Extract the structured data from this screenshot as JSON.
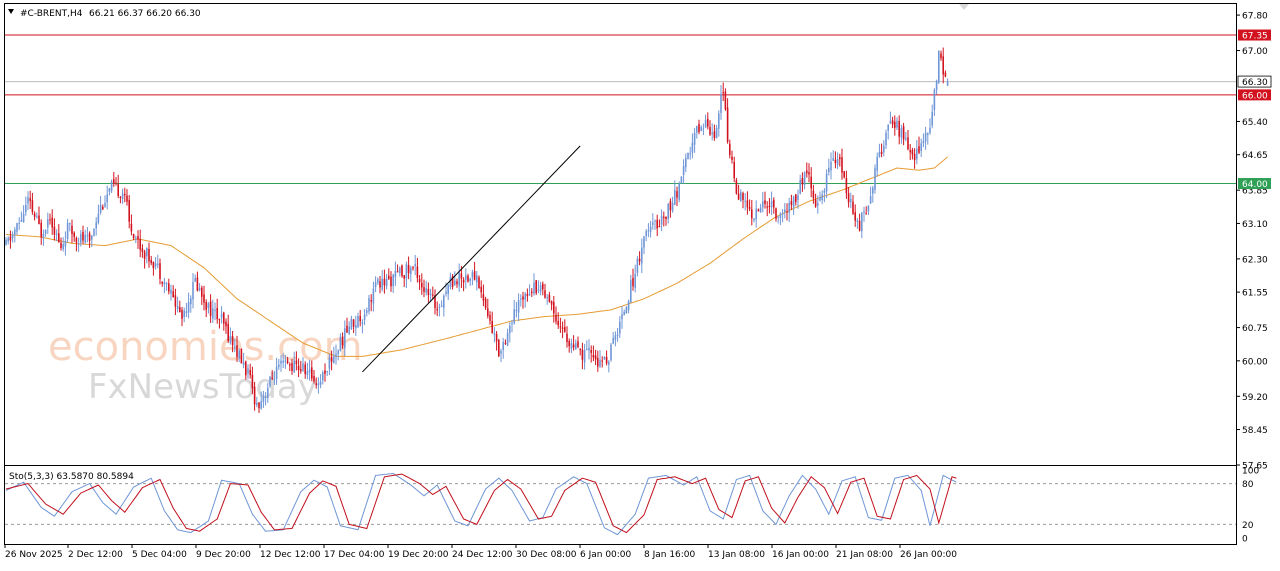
{
  "header": {
    "symbol": "#C-BRENT,H4",
    "ohlc": "66.21 66.37 66.20 66.30"
  },
  "watermark": {
    "line1": "economies.com",
    "line2": "FxNewsToday"
  },
  "colors": {
    "bull": "#6f96d6",
    "bear": "#d2121e",
    "ma": "#e69b32",
    "resistance": "#d2121e",
    "support": "#2fa055",
    "current": "#bdbdbd",
    "trendline": "#000000",
    "stoch_main": "#6f96d6",
    "stoch_signal": "#c0101c"
  },
  "chart_data": [
    {
      "type": "candlestick",
      "title": "#C-BRENT,H4",
      "last_ohlc": {
        "open": 66.21,
        "high": 66.37,
        "low": 66.2,
        "close": 66.3
      },
      "ylim": [
        57.65,
        68.05
      ],
      "y_ticks": [
        "67.80",
        "67.00",
        "65.40",
        "64.65",
        "63.85",
        "63.10",
        "62.30",
        "61.55",
        "60.75",
        "60.00",
        "59.20",
        "58.45",
        "57.65"
      ],
      "x_ticks": [
        "26 Nov 2025",
        "2 Dec 12:00",
        "5 Dec 04:00",
        "9 Dec 20:00",
        "12 Dec 12:00",
        "17 Dec 04:00",
        "19 Dec 20:00",
        "24 Dec 12:00",
        "30 Dec 08:00",
        "6 Jan 00:00",
        "8 Jan 16:00",
        "13 Jan 08:00",
        "16 Jan 00:00",
        "21 Jan 08:00",
        "26 Jan 00:00"
      ],
      "horizontal_levels": [
        {
          "name": "resistance",
          "value": 67.35,
          "label": "67.35"
        },
        {
          "name": "support-1",
          "value": 66.0,
          "label": "66.00"
        },
        {
          "name": "support-2",
          "value": 64.0,
          "label": "64.00"
        }
      ],
      "current_price": {
        "value": 66.3,
        "label": "66.30"
      },
      "trendline": {
        "start": {
          "bar": 162,
          "price": 59.75
        },
        "end": {
          "bar": 261,
          "price": 64.85
        }
      },
      "anchors": [
        [
          0,
          62.6
        ],
        [
          6,
          63.1
        ],
        [
          10,
          63.6
        ],
        [
          16,
          62.9
        ],
        [
          20,
          63.3
        ],
        [
          25,
          62.5
        ],
        [
          28,
          63.0
        ],
        [
          32,
          62.8
        ],
        [
          38,
          62.7
        ],
        [
          42,
          63.4
        ],
        [
          48,
          63.9
        ],
        [
          54,
          63.8
        ],
        [
          56,
          63.1
        ],
        [
          62,
          62.5
        ],
        [
          68,
          62.2
        ],
        [
          74,
          61.6
        ],
        [
          80,
          61.0
        ],
        [
          86,
          61.8
        ],
        [
          92,
          61.2
        ],
        [
          98,
          60.9
        ],
        [
          104,
          60.3
        ],
        [
          110,
          59.7
        ],
        [
          114,
          59.0
        ],
        [
          118,
          59.3
        ],
        [
          122,
          59.7
        ],
        [
          126,
          59.9
        ],
        [
          130,
          59.9
        ],
        [
          136,
          59.8
        ],
        [
          142,
          59.5
        ],
        [
          146,
          59.9
        ],
        [
          150,
          60.2
        ],
        [
          156,
          60.8
        ],
        [
          162,
          61.0
        ],
        [
          168,
          61.7
        ],
        [
          174,
          61.8
        ],
        [
          180,
          62.0
        ],
        [
          186,
          62.1
        ],
        [
          190,
          61.6
        ],
        [
          196,
          61.2
        ],
        [
          202,
          61.8
        ],
        [
          208,
          61.9
        ],
        [
          214,
          61.9
        ],
        [
          218,
          61.2
        ],
        [
          224,
          60.2
        ],
        [
          230,
          60.9
        ],
        [
          236,
          61.6
        ],
        [
          242,
          61.7
        ],
        [
          246,
          61.5
        ],
        [
          250,
          61.0
        ],
        [
          256,
          60.4
        ],
        [
          262,
          60.1
        ],
        [
          266,
          60.2
        ],
        [
          270,
          59.9
        ],
        [
          274,
          60.1
        ],
        [
          280,
          61.0
        ],
        [
          286,
          62.0
        ],
        [
          290,
          62.8
        ],
        [
          294,
          63.0
        ],
        [
          298,
          63.2
        ],
        [
          302,
          63.5
        ],
        [
          306,
          63.9
        ],
        [
          310,
          64.6
        ],
        [
          314,
          65.2
        ],
        [
          318,
          65.4
        ],
        [
          322,
          65.1
        ],
        [
          326,
          66.2
        ],
        [
          328,
          64.9
        ],
        [
          332,
          63.9
        ],
        [
          336,
          63.5
        ],
        [
          340,
          63.3
        ],
        [
          346,
          63.6
        ],
        [
          352,
          63.2
        ],
        [
          358,
          63.6
        ],
        [
          364,
          64.3
        ],
        [
          368,
          63.4
        ],
        [
          372,
          63.9
        ],
        [
          376,
          64.7
        ],
        [
          380,
          64.3
        ],
        [
          384,
          63.5
        ],
        [
          388,
          63.1
        ],
        [
          392,
          63.6
        ],
        [
          396,
          64.5
        ],
        [
          400,
          65.1
        ],
        [
          404,
          65.4
        ],
        [
          408,
          65.0
        ],
        [
          412,
          64.6
        ],
        [
          416,
          64.9
        ],
        [
          420,
          65.2
        ],
        [
          424,
          66.9
        ],
        [
          426,
          66.6
        ],
        [
          428,
          66.3
        ]
      ],
      "moving_average": [
        [
          0,
          62.85
        ],
        [
          15,
          62.8
        ],
        [
          30,
          62.65
        ],
        [
          45,
          62.6
        ],
        [
          60,
          62.75
        ],
        [
          75,
          62.6
        ],
        [
          90,
          62.1
        ],
        [
          105,
          61.4
        ],
        [
          120,
          60.9
        ],
        [
          135,
          60.4
        ],
        [
          150,
          60.1
        ],
        [
          162,
          60.1
        ],
        [
          180,
          60.25
        ],
        [
          200,
          60.5
        ],
        [
          215,
          60.7
        ],
        [
          230,
          60.9
        ],
        [
          245,
          61.0
        ],
        [
          260,
          61.05
        ],
        [
          275,
          61.15
        ],
        [
          290,
          61.4
        ],
        [
          305,
          61.75
        ],
        [
          320,
          62.2
        ],
        [
          335,
          62.75
        ],
        [
          350,
          63.25
        ],
        [
          365,
          63.6
        ],
        [
          380,
          63.85
        ],
        [
          395,
          64.15
        ],
        [
          405,
          64.35
        ],
        [
          415,
          64.3
        ],
        [
          422,
          64.35
        ],
        [
          428,
          64.6
        ]
      ]
    },
    {
      "type": "line",
      "title": "Sto(5,3,3) 63.5870 80.5894",
      "indicator": "Sto(5,3,3)",
      "main_value": 63.587,
      "signal_value": 80.5894,
      "ylim": [
        0,
        100
      ],
      "y_ticks": [
        "100",
        "80",
        "20",
        "0"
      ],
      "levels": [
        80,
        20
      ],
      "series": [
        {
          "name": "main",
          "anchors": [
            [
              0,
              70
            ],
            [
              8,
              82
            ],
            [
              16,
              45
            ],
            [
              22,
              32
            ],
            [
              30,
              68
            ],
            [
              38,
              80
            ],
            [
              44,
              52
            ],
            [
              50,
              35
            ],
            [
              58,
              75
            ],
            [
              66,
              88
            ],
            [
              72,
              40
            ],
            [
              78,
              12
            ],
            [
              84,
              8
            ],
            [
              92,
              25
            ],
            [
              98,
              85
            ],
            [
              106,
              80
            ],
            [
              112,
              35
            ],
            [
              118,
              10
            ],
            [
              126,
              12
            ],
            [
              134,
              68
            ],
            [
              140,
              85
            ],
            [
              146,
              75
            ],
            [
              152,
              18
            ],
            [
              160,
              12
            ],
            [
              168,
              92
            ],
            [
              176,
              95
            ],
            [
              184,
              78
            ],
            [
              190,
              62
            ],
            [
              196,
              78
            ],
            [
              204,
              25
            ],
            [
              210,
              18
            ],
            [
              218,
              72
            ],
            [
              224,
              88
            ],
            [
              230,
              70
            ],
            [
              238,
              25
            ],
            [
              244,
              30
            ],
            [
              250,
              72
            ],
            [
              258,
              90
            ],
            [
              264,
              80
            ],
            [
              272,
              15
            ],
            [
              278,
              5
            ],
            [
              286,
              35
            ],
            [
              292,
              88
            ],
            [
              300,
              92
            ],
            [
              308,
              78
            ],
            [
              314,
              90
            ],
            [
              320,
              40
            ],
            [
              326,
              28
            ],
            [
              332,
              86
            ],
            [
              338,
              92
            ],
            [
              344,
              40
            ],
            [
              350,
              20
            ],
            [
              356,
              62
            ],
            [
              362,
              92
            ],
            [
              368,
              72
            ],
            [
              374,
              35
            ],
            [
              380,
              84
            ],
            [
              386,
              90
            ],
            [
              392,
              30
            ],
            [
              398,
              26
            ],
            [
              404,
              88
            ],
            [
              410,
              92
            ],
            [
              416,
              70
            ],
            [
              420,
              18
            ],
            [
              426,
              92
            ],
            [
              432,
              82
            ]
          ]
        },
        {
          "name": "signal",
          "anchors": [
            [
              0,
              72
            ],
            [
              10,
              80
            ],
            [
              18,
              50
            ],
            [
              26,
              35
            ],
            [
              34,
              66
            ],
            [
              42,
              78
            ],
            [
              48,
              55
            ],
            [
              54,
              38
            ],
            [
              62,
              74
            ],
            [
              70,
              86
            ],
            [
              76,
              44
            ],
            [
              82,
              14
            ],
            [
              88,
              10
            ],
            [
              96,
              28
            ],
            [
              102,
              80
            ],
            [
              110,
              78
            ],
            [
              116,
              38
            ],
            [
              122,
              12
            ],
            [
              130,
              14
            ],
            [
              138,
              66
            ],
            [
              144,
              84
            ],
            [
              150,
              76
            ],
            [
              156,
              20
            ],
            [
              164,
              14
            ],
            [
              172,
              90
            ],
            [
              180,
              94
            ],
            [
              188,
              80
            ],
            [
              194,
              64
            ],
            [
              200,
              76
            ],
            [
              208,
              28
            ],
            [
              214,
              20
            ],
            [
              222,
              70
            ],
            [
              228,
              86
            ],
            [
              234,
              72
            ],
            [
              242,
              28
            ],
            [
              248,
              32
            ],
            [
              254,
              70
            ],
            [
              262,
              88
            ],
            [
              268,
              82
            ],
            [
              276,
              18
            ],
            [
              282,
              8
            ],
            [
              290,
              34
            ],
            [
              296,
              86
            ],
            [
              304,
              90
            ],
            [
              312,
              80
            ],
            [
              318,
              88
            ],
            [
              324,
              42
            ],
            [
              330,
              30
            ],
            [
              336,
              84
            ],
            [
              342,
              90
            ],
            [
              348,
              44
            ],
            [
              354,
              22
            ],
            [
              360,
              60
            ],
            [
              366,
              90
            ],
            [
              372,
              74
            ],
            [
              378,
              36
            ],
            [
              384,
              82
            ],
            [
              390,
              88
            ],
            [
              396,
              32
            ],
            [
              402,
              28
            ],
            [
              408,
              86
            ],
            [
              414,
              92
            ],
            [
              420,
              72
            ],
            [
              424,
              22
            ],
            [
              430,
              90
            ],
            [
              434,
              86
            ]
          ]
        }
      ]
    }
  ]
}
